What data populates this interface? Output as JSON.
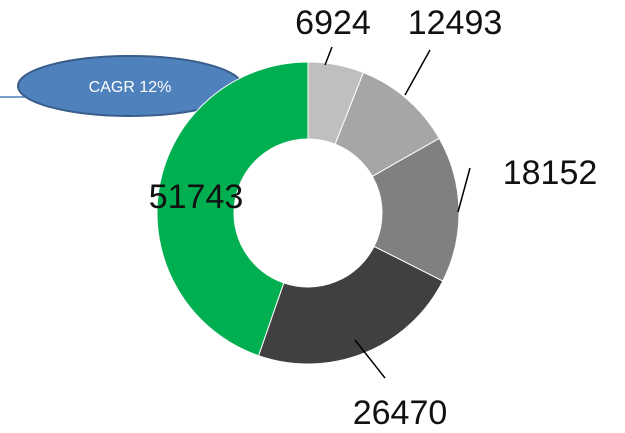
{
  "chart_data": {
    "type": "donut",
    "values": [
      6924,
      12493,
      18152,
      26470,
      51743
    ],
    "colors": [
      "#bfbfbf",
      "#a6a6a6",
      "#808080",
      "#404040",
      "#00b050"
    ],
    "annotation": "CAGR 12%"
  }
}
